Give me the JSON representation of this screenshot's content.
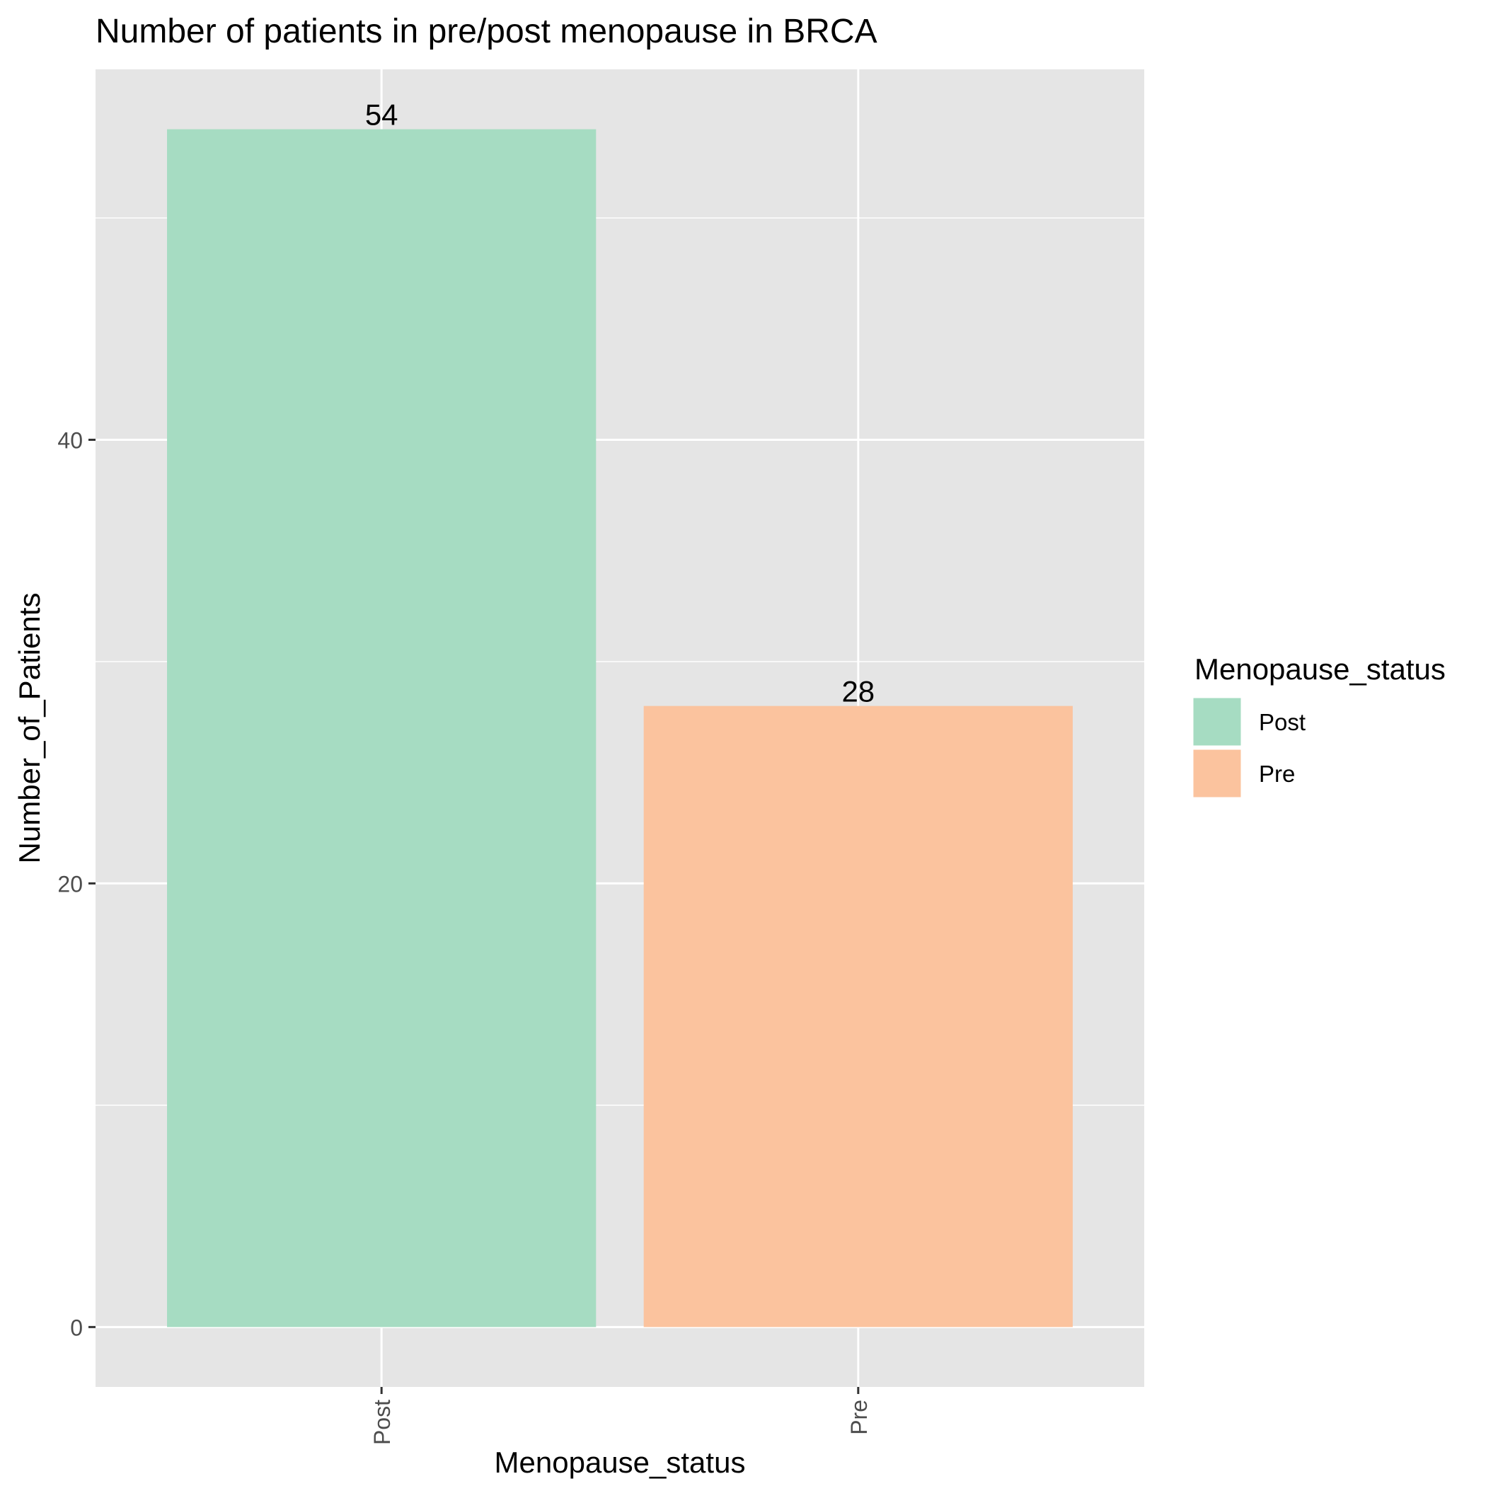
{
  "chart_data": {
    "type": "bar",
    "title": "Number of patients in pre/post menopause in BRCA",
    "xlabel": "Menopause_status",
    "ylabel": "Number_of_Patients",
    "categories": [
      "Post",
      "Pre"
    ],
    "values": [
      54,
      28
    ],
    "data_labels": [
      "54",
      "28"
    ],
    "colors": [
      "#A6DCC2",
      "#FBC39E"
    ],
    "ylim": [
      -2.7,
      56.7
    ],
    "yticks": [
      0,
      20,
      40
    ],
    "ytick_labels": [
      "0",
      "20",
      "40"
    ],
    "minor_yticks": [
      10,
      30,
      50
    ],
    "grid": true,
    "panel_background": "#E5E5E5",
    "grid_color": "#FFFFFF",
    "legend": {
      "title": "Menopause_status",
      "placement": "right",
      "items": [
        {
          "label": "Post",
          "color": "#A6DCC2"
        },
        {
          "label": "Pre",
          "color": "#FBC39E"
        }
      ]
    }
  }
}
